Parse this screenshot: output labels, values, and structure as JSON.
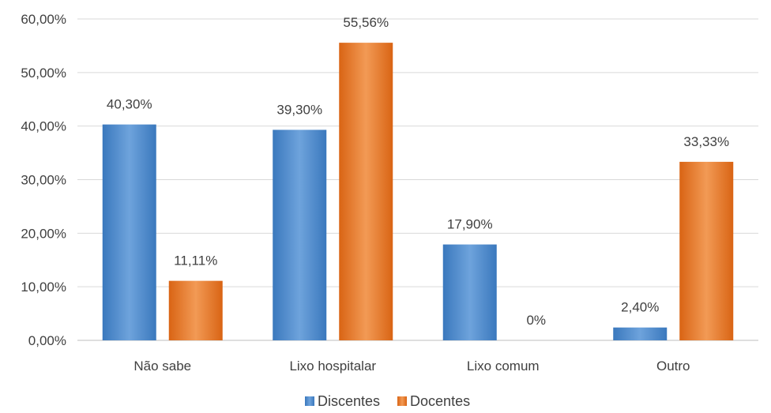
{
  "chart_data": {
    "type": "bar",
    "categories": [
      "Não sabe",
      "Lixo hospitalar",
      "Lixo comum",
      "Outro"
    ],
    "series": [
      {
        "name": "Discentes",
        "values": [
          40.3,
          39.3,
          17.9,
          2.4
        ],
        "labels": [
          "40,30%",
          "39,30%",
          "17,90%",
          "2,40%"
        ],
        "color": "#4a86c8"
      },
      {
        "name": "Docentes",
        "values": [
          11.11,
          55.56,
          0,
          33.33
        ],
        "labels": [
          "11,11%",
          "55,56%",
          "0%",
          "33,33%"
        ],
        "color": "#e8731f"
      }
    ],
    "ylim": [
      0,
      60
    ],
    "yticks": [
      0,
      10,
      20,
      30,
      40,
      50,
      60
    ],
    "ytick_labels": [
      "0,00%",
      "10,00%",
      "20,00%",
      "30,00%",
      "40,00%",
      "50,00%",
      "60,00%"
    ],
    "grid": true,
    "legend_position": "bottom"
  }
}
